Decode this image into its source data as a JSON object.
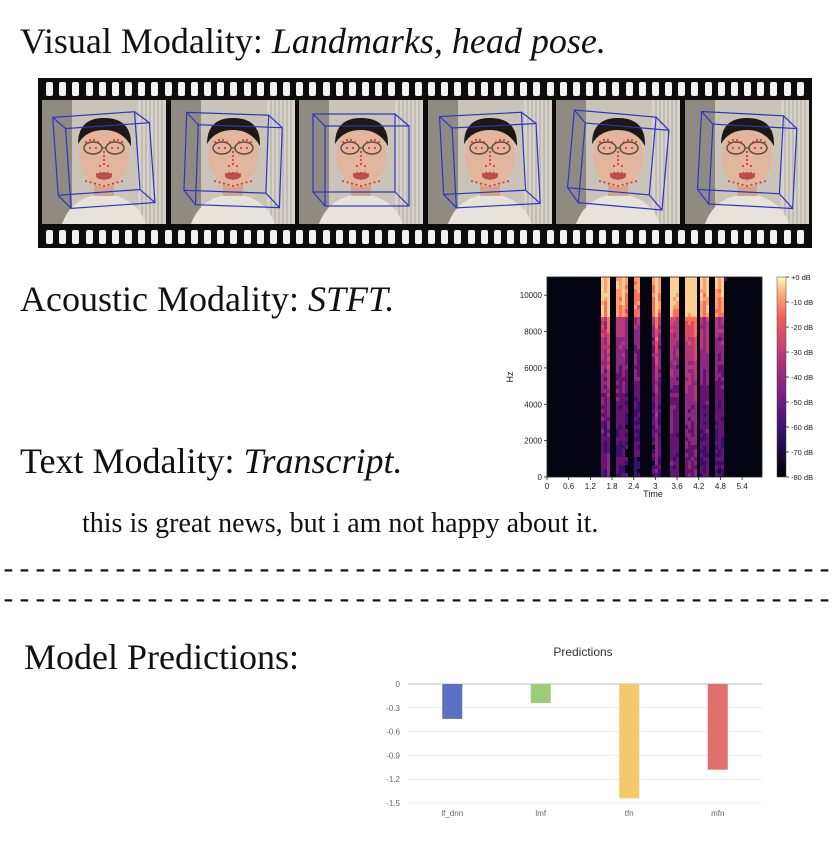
{
  "visual": {
    "label": "Visual Modality: ",
    "detail": "Landmarks, head pose.",
    "frame_count": 6
  },
  "acoustic": {
    "label": "Acoustic Modality: ",
    "detail": "STFT.",
    "spectrogram": {
      "ylabel": "Hz",
      "xlabel": "Time",
      "y_ticks": [
        "0",
        "2000",
        "4000",
        "6000",
        "8000",
        "10000"
      ],
      "x_ticks": [
        "0",
        "0.6",
        "1.2",
        "1.8",
        "2.4",
        "3",
        "3.6",
        "4.2",
        "4.8",
        "5.4"
      ],
      "colorbar_ticks": [
        "+0 dB",
        "-10 dB",
        "-20 dB",
        "-30 dB",
        "-40 dB",
        "-50 dB",
        "-60 dB",
        "-70 dB",
        "-80 dB"
      ]
    }
  },
  "text": {
    "label": "Text Modality: ",
    "detail": "Transcript.",
    "transcript": "this is great news, but i am not happy about it."
  },
  "predictions": {
    "label": "Model Predictions:"
  },
  "colors": {
    "lf_dnn": "#5b72c4",
    "lmf": "#9ccb7a",
    "tfn": "#f3c96b",
    "mfn": "#e0706c",
    "box": "#2a35c8",
    "landmark": "#e23b3b"
  },
  "chart_data": {
    "type": "bar",
    "title": "Predictions",
    "categories": [
      "lf_dnn",
      "lmf",
      "tfn",
      "mfn"
    ],
    "values": [
      -0.44,
      -0.24,
      -1.44,
      -1.08
    ],
    "ylim": [
      -1.5,
      0
    ],
    "yticks": [
      "0",
      "-0.3",
      "-0.6",
      "-0.9",
      "-1.2",
      "-1.5"
    ],
    "xlabel": "",
    "ylabel": "",
    "grid": true
  }
}
